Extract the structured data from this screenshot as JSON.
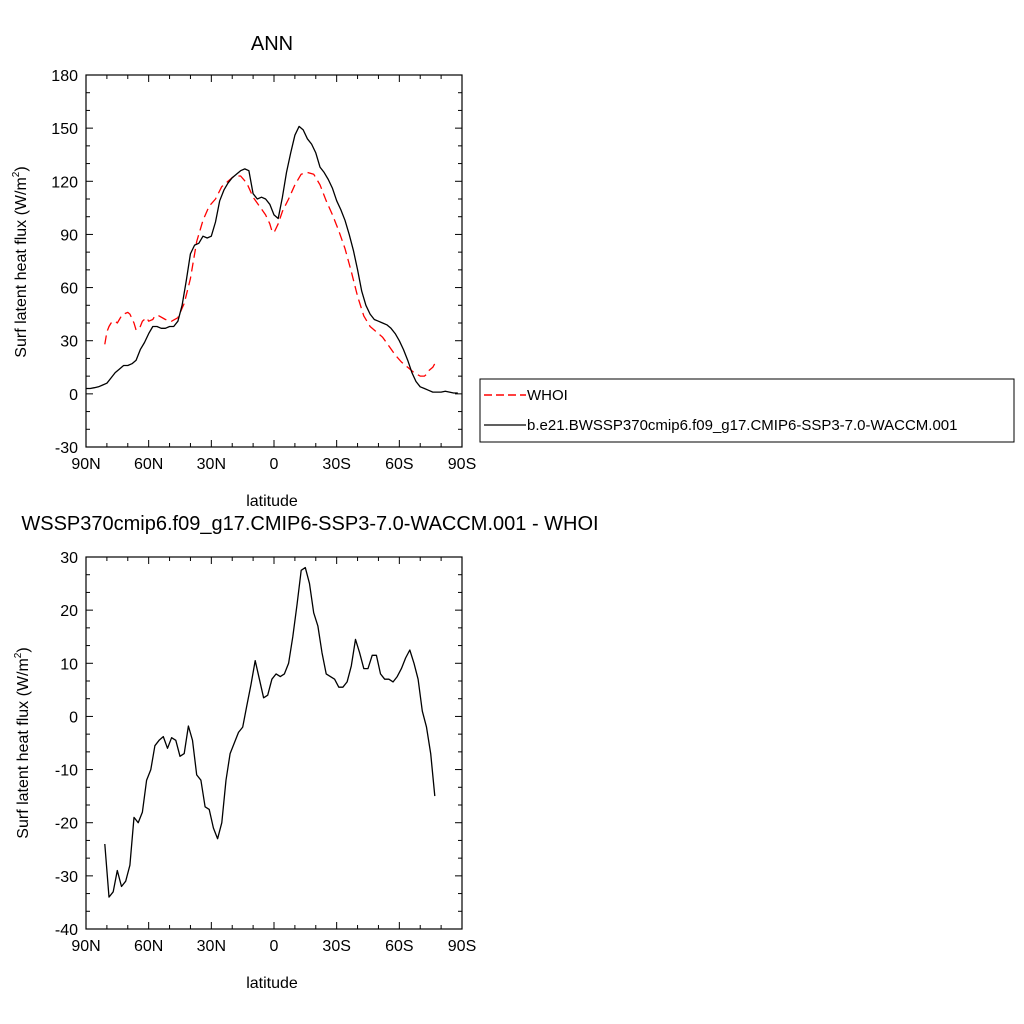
{
  "chart_data": [
    {
      "type": "line",
      "title": "ANN",
      "xlabel": "latitude",
      "ylabel": "Surf latent heat flux (W/m",
      "ylabel_sup": "2",
      "ylabel_close": ")",
      "xlim": [
        90,
        -90
      ],
      "ylim": [
        -30,
        180
      ],
      "xticks": [
        90,
        60,
        30,
        0,
        -30,
        -60,
        -90
      ],
      "xtick_labels": [
        "90N",
        "60N",
        "30N",
        "0",
        "30S",
        "60S",
        "90S"
      ],
      "yticks": [
        -30,
        0,
        30,
        60,
        90,
        120,
        150,
        180
      ],
      "ytick_labels": [
        "-30",
        "0",
        "30",
        "60",
        "90",
        "120",
        "150",
        "180"
      ],
      "legend": {
        "placement": "right",
        "entries": [
          "WHOI",
          "b.e21.BWSSP370cmip6.f09_g17.CMIP6-SSP3-7.0-WACCM.001"
        ]
      },
      "series": [
        {
          "name": "WHOI",
          "color": "#ff0000",
          "style": "dashed",
          "x": [
            81,
            80,
            79,
            78,
            76,
            75,
            73,
            72,
            70,
            69,
            67,
            66,
            64,
            63,
            61,
            60,
            58,
            57,
            55,
            52,
            49,
            46,
            43,
            40,
            37,
            34,
            31,
            28,
            25,
            22,
            19,
            16,
            13,
            10,
            7,
            4,
            2,
            1,
            0,
            -2,
            -4,
            -7,
            -10,
            -13,
            -16,
            -19,
            -22,
            -25,
            -28,
            -31,
            -34,
            -37,
            -40,
            -43,
            -46,
            -49,
            -52,
            -55,
            -58,
            -61,
            -64,
            -67,
            -70,
            -72,
            -73,
            -74,
            -76,
            -77,
            -78
          ],
          "y": [
            28,
            35,
            38,
            40,
            41,
            40,
            44,
            45,
            46,
            45,
            40,
            36,
            38,
            41,
            43,
            41,
            42,
            44,
            44,
            42,
            41,
            43,
            51,
            65,
            86,
            98,
            106,
            110,
            117,
            120,
            123,
            123,
            119,
            111,
            106,
            101,
            96,
            92,
            91,
            96,
            103,
            110,
            118,
            124,
            125,
            124,
            118,
            109,
            101,
            92,
            82,
            69,
            55,
            44,
            38,
            35,
            32,
            27,
            22,
            18,
            15,
            12,
            10,
            10,
            11,
            13,
            15,
            17,
            18
          ]
        },
        {
          "name": "b.e21.BWSSP370cmip6.f09_g17.CMIP6-SSP3-7.0-WACCM.001",
          "color": "#000000",
          "style": "solid",
          "x": [
            90,
            88,
            86,
            84,
            82,
            80,
            78,
            76,
            74,
            72,
            70,
            68,
            66,
            64,
            62,
            60,
            58,
            56,
            54,
            52,
            50,
            48,
            46,
            44,
            42,
            40,
            38,
            36,
            34,
            32,
            30,
            28,
            26,
            24,
            22,
            20,
            18,
            16,
            14,
            12,
            10,
            8,
            6,
            4,
            2,
            0,
            -2,
            -4,
            -6,
            -8,
            -10,
            -12,
            -14,
            -16,
            -18,
            -20,
            -22,
            -24,
            -26,
            -28,
            -30,
            -32,
            -34,
            -36,
            -38,
            -40,
            -42,
            -44,
            -46,
            -48,
            -50,
            -52,
            -54,
            -56,
            -58,
            -60,
            -62,
            -64,
            -66,
            -68,
            -70,
            -72,
            -74,
            -76,
            -78,
            -80,
            -82,
            -84,
            -86,
            -88
          ],
          "y": [
            3,
            3,
            3.5,
            4,
            5,
            6,
            9,
            12,
            14,
            16,
            16,
            17,
            19,
            25,
            29,
            34,
            38,
            38,
            37,
            37,
            38,
            38,
            41,
            50,
            64,
            79,
            84,
            85,
            89,
            88,
            89,
            97,
            109,
            115,
            119,
            122,
            124,
            126,
            127,
            126,
            113,
            110,
            111,
            110,
            107,
            101,
            99,
            111,
            125,
            136,
            146,
            151,
            149,
            144,
            141,
            136,
            128,
            125,
            121,
            116,
            109,
            104,
            98,
            90,
            81,
            70,
            58,
            50,
            45,
            42,
            41,
            40,
            39,
            37,
            34,
            30,
            25,
            19,
            12,
            7,
            4,
            3,
            2,
            1,
            1,
            1,
            1.5,
            1,
            0.5,
            0.5
          ]
        }
      ]
    },
    {
      "type": "line",
      "title": "WSSP370cmip6.f09_g17.CMIP6-SSP3-7.0-WACCM.001 - WHOI",
      "xlabel": "latitude",
      "ylabel": "Surf latent heat flux (W/m",
      "ylabel_sup": "2",
      "ylabel_close": ")",
      "xlim": [
        90,
        -90
      ],
      "ylim": [
        -40,
        30
      ],
      "xticks": [
        90,
        60,
        30,
        0,
        -30,
        -60,
        -90
      ],
      "xtick_labels": [
        "90N",
        "60N",
        "30N",
        "0",
        "30S",
        "60S",
        "90S"
      ],
      "yticks": [
        -40,
        -30,
        -20,
        -10,
        0,
        10,
        20,
        30
      ],
      "ytick_labels": [
        "-40",
        "-30",
        "-20",
        "-10",
        "0",
        "10",
        "20",
        "30"
      ],
      "series": [
        {
          "color": "#000000",
          "style": "solid",
          "x": [
            81,
            79,
            77,
            75,
            73,
            71,
            69,
            67,
            65,
            63,
            61,
            59,
            57,
            55,
            53,
            51,
            49,
            47,
            45,
            43,
            41,
            39,
            37,
            35,
            33,
            31,
            29,
            27,
            25,
            23,
            21,
            19,
            17,
            15,
            13,
            11,
            9,
            7,
            5,
            3,
            1,
            -1,
            -3,
            -5,
            -7,
            -9,
            -11,
            -13,
            -15,
            -17,
            -19,
            -21,
            -23,
            -25,
            -27,
            -29,
            -31,
            -33,
            -35,
            -37,
            -39,
            -41,
            -43,
            -45,
            -47,
            -49,
            -51,
            -53,
            -55,
            -57,
            -59,
            -61,
            -63,
            -65,
            -67,
            -69,
            -71,
            -73,
            -75,
            -77
          ],
          "y": [
            -24,
            -34,
            -33,
            -29,
            -32,
            -31,
            -28,
            -19,
            -20,
            -18,
            -12,
            -10,
            -5.5,
            -4.5,
            -3.8,
            -6,
            -4,
            -4.5,
            -7.5,
            -7,
            -1.8,
            -4.5,
            -11,
            -12,
            -17,
            -17.5,
            -21,
            -23,
            -20,
            -12,
            -7,
            -5,
            -3,
            -2,
            2,
            6,
            10.5,
            7,
            3.5,
            4,
            7,
            8,
            7.5,
            8,
            10,
            15,
            21,
            27.5,
            28,
            25,
            19.5,
            17,
            12,
            8,
            7.5,
            7,
            5.5,
            5.5,
            6.5,
            9.5,
            14.5,
            12,
            9,
            9,
            11.5,
            11.5,
            8,
            7,
            7,
            6.5,
            7.5,
            9,
            11,
            12.5,
            10,
            7,
            1,
            -2,
            -7,
            -15
          ]
        }
      ]
    }
  ]
}
